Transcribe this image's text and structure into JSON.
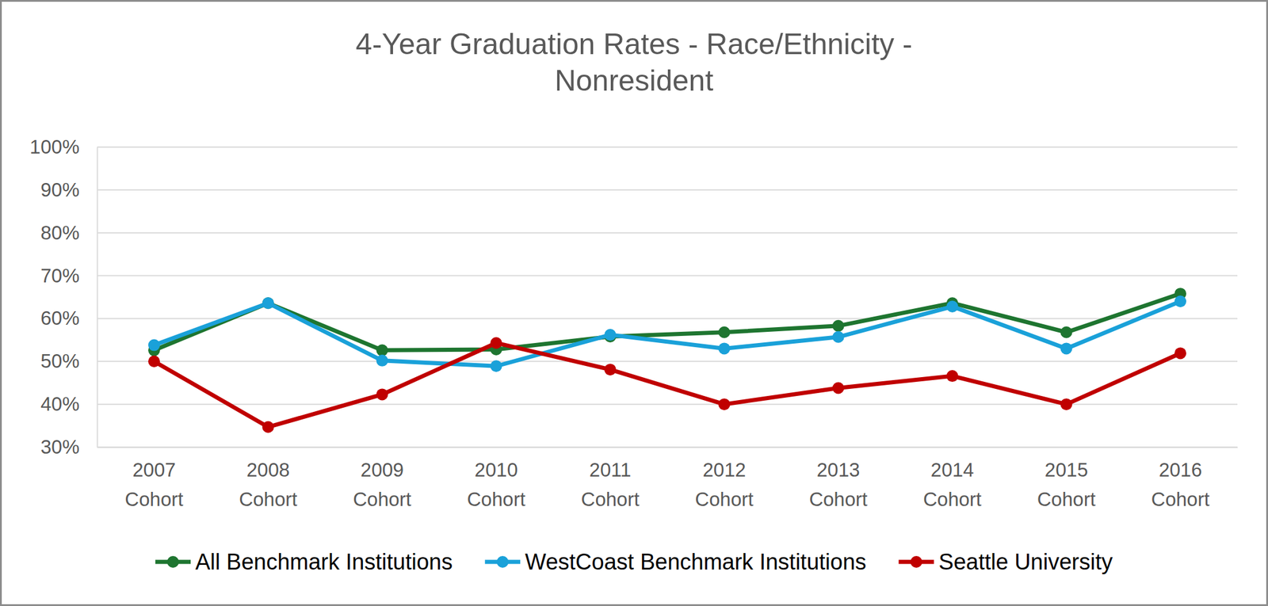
{
  "chart_data": {
    "type": "line",
    "title": "4-Year Graduation Rates - Race/Ethnicity - Nonresident",
    "categories": [
      "2007 Cohort",
      "2008 Cohort",
      "2009 Cohort",
      "2010 Cohort",
      "2011 Cohort",
      "2012 Cohort",
      "2013 Cohort",
      "2014 Cohort",
      "2015 Cohort",
      "2016 Cohort"
    ],
    "series": [
      {
        "name": "All Benchmark Institutions",
        "color": "#1e7530",
        "marker": "circle",
        "values": [
          52.6,
          63.6,
          52.6,
          52.8,
          55.8,
          56.8,
          58.3,
          63.6,
          56.8,
          65.8
        ]
      },
      {
        "name": "WestCoast Benchmark Institutions",
        "color": "#1aa1d9",
        "marker": "circle",
        "values": [
          53.8,
          63.6,
          50.2,
          48.9,
          56.2,
          53.0,
          55.7,
          62.8,
          53.0,
          64.0
        ]
      },
      {
        "name": "Seattle University",
        "color": "#c00000",
        "marker": "circle",
        "values": [
          50.0,
          34.7,
          42.3,
          54.3,
          48.1,
          40.0,
          43.8,
          46.6,
          40.0,
          51.9
        ]
      }
    ],
    "ylim": [
      30,
      100
    ],
    "yticks": [
      {
        "value": 30,
        "label": "30%"
      },
      {
        "value": 40,
        "label": "40%"
      },
      {
        "value": 50,
        "label": "50%"
      },
      {
        "value": 60,
        "label": "60%"
      },
      {
        "value": 70,
        "label": "70%"
      },
      {
        "value": 80,
        "label": "80%"
      },
      {
        "value": 90,
        "label": "90%"
      },
      {
        "value": 100,
        "label": "100%"
      }
    ],
    "grid": true,
    "legend": "bottom"
  }
}
